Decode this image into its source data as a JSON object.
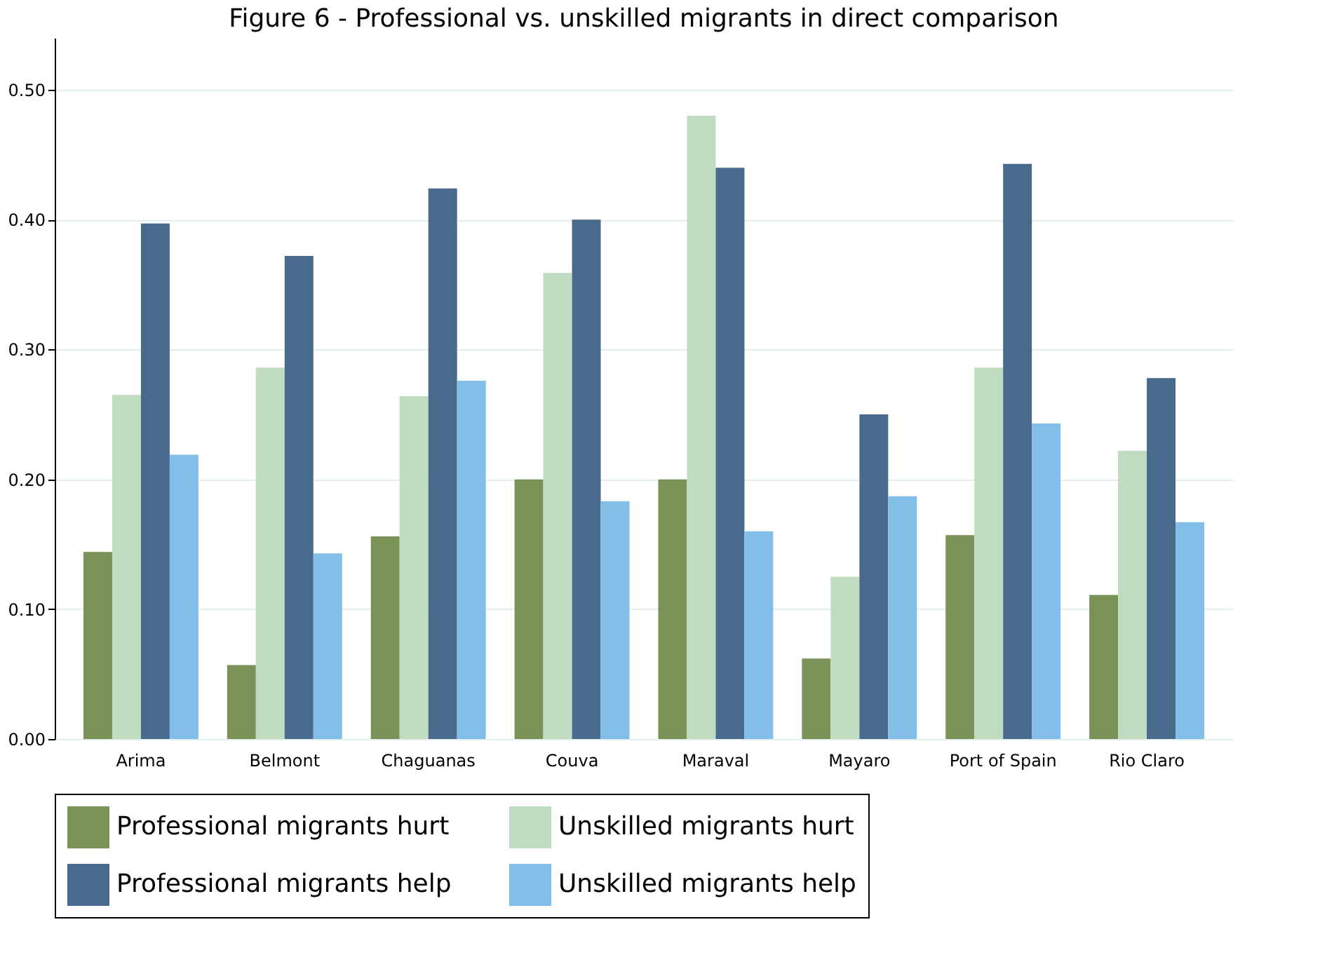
{
  "chart_data": {
    "type": "bar",
    "title": "Figure 6 - Professional vs. unskilled migrants in direct comparison",
    "categories": [
      "Arima",
      "Belmont",
      "Chaguanas",
      "Couva",
      "Maraval",
      "Mayaro",
      "Port of Spain",
      "Rio Claro"
    ],
    "series": [
      {
        "name": "Professional migrants hurt",
        "color": "#7a9157",
        "values": [
          0.144,
          0.057,
          0.156,
          0.2,
          0.2,
          0.062,
          0.157,
          0.111
        ]
      },
      {
        "name": "Unskilled migrants hurt",
        "color": "#c0dcc0",
        "values": [
          0.265,
          0.286,
          0.264,
          0.359,
          0.48,
          0.125,
          0.286,
          0.222
        ]
      },
      {
        "name": "Professional migrants help",
        "color": "#486a8c",
        "values": [
          0.397,
          0.372,
          0.424,
          0.4,
          0.44,
          0.25,
          0.443,
          0.278
        ]
      },
      {
        "name": "Unskilled migrants help",
        "color": "#83bee8",
        "values": [
          0.219,
          0.143,
          0.276,
          0.183,
          0.16,
          0.187,
          0.243,
          0.167
        ]
      }
    ],
    "ylim": [
      0,
      0.54
    ],
    "yticks": [
      {
        "value": 0,
        "label": "0.00"
      },
      {
        "value": 0.1,
        "label": "0.10"
      },
      {
        "value": 0.2,
        "label": "0.20"
      },
      {
        "value": 0.3,
        "label": "0.30"
      },
      {
        "value": 0.4,
        "label": "0.40"
      },
      {
        "value": 0.5,
        "label": "0.50"
      }
    ],
    "grid": "y",
    "legend": "bottom"
  }
}
